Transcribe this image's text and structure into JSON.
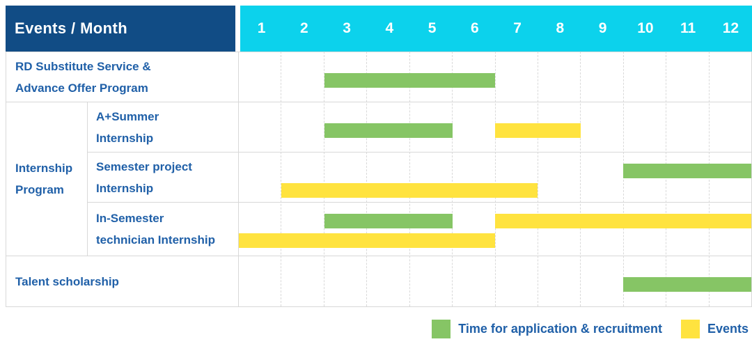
{
  "table": {
    "corner_label": "Events / Month",
    "months": [
      "1",
      "2",
      "3",
      "4",
      "5",
      "6",
      "7",
      "8",
      "9",
      "10",
      "11",
      "12"
    ]
  },
  "colors": {
    "corner_bg": "#114C85",
    "months_bg": "#0CD2EC",
    "header_text": "#FFFFFF",
    "label_text": "#2060A8",
    "row_border": "#D8D8D8",
    "month_grid": "#D9D9D9",
    "page_bg": "#FFFFFF",
    "green": "#86C565",
    "yellow": "#FFE33F"
  },
  "chart_data": {
    "type": "bar",
    "variant": "gantt-timeline",
    "title": "Events / Month",
    "x_axis": {
      "label": "Month",
      "ticks": [
        "1",
        "2",
        "3",
        "4",
        "5",
        "6",
        "7",
        "8",
        "9",
        "10",
        "11",
        "12"
      ],
      "range_months": [
        1,
        13
      ]
    },
    "grid": "vertical-dashed",
    "legend_position": "bottom-right",
    "series": [
      {
        "key": "application",
        "name": "Time for application & recruitment",
        "color": "#86C565"
      },
      {
        "key": "events",
        "name": "Events",
        "color": "#FFE33F"
      }
    ],
    "rows": [
      {
        "label": "RD Substitute Service & Advance Offer Program",
        "label_lines": [
          "RD Substitute Service &",
          "Advance Offer Program"
        ],
        "group": null,
        "bars": [
          {
            "series": "application",
            "start_month": 3,
            "end_month": 7,
            "lane": "center"
          }
        ]
      },
      {
        "label": "A+Summer Internship",
        "label_lines": [
          "A+Summer",
          "Internship"
        ],
        "group": "Internship Program",
        "bars": [
          {
            "series": "application",
            "start_month": 3,
            "end_month": 6,
            "lane": "center"
          },
          {
            "series": "events",
            "start_month": 7,
            "end_month": 9,
            "lane": "center"
          }
        ]
      },
      {
        "label": "Semester project Internship",
        "label_lines": [
          "Semester project",
          "Internship"
        ],
        "group": "Internship Program",
        "bars": [
          {
            "series": "application",
            "start_month": 10,
            "end_month": 13,
            "lane": "top"
          },
          {
            "series": "events",
            "start_month": 2,
            "end_month": 8,
            "lane": "bottom"
          }
        ]
      },
      {
        "label": "In-Semester technician Internship",
        "label_lines": [
          "In-Semester",
          "technician Internship"
        ],
        "group": "Internship Program",
        "bars": [
          {
            "series": "application",
            "start_month": 3,
            "end_month": 6,
            "lane": "top"
          },
          {
            "series": "events",
            "start_month": 7,
            "end_month": 13,
            "lane": "top"
          },
          {
            "series": "events",
            "start_month": 1,
            "end_month": 7,
            "lane": "bottom"
          }
        ]
      },
      {
        "label": "Talent scholarship",
        "label_lines": [
          "Talent scholarship"
        ],
        "group": null,
        "bars": [
          {
            "series": "application",
            "start_month": 10,
            "end_month": 13,
            "lane": "center"
          }
        ]
      }
    ],
    "group_label_lines": [
      "Internship",
      "Program"
    ]
  }
}
